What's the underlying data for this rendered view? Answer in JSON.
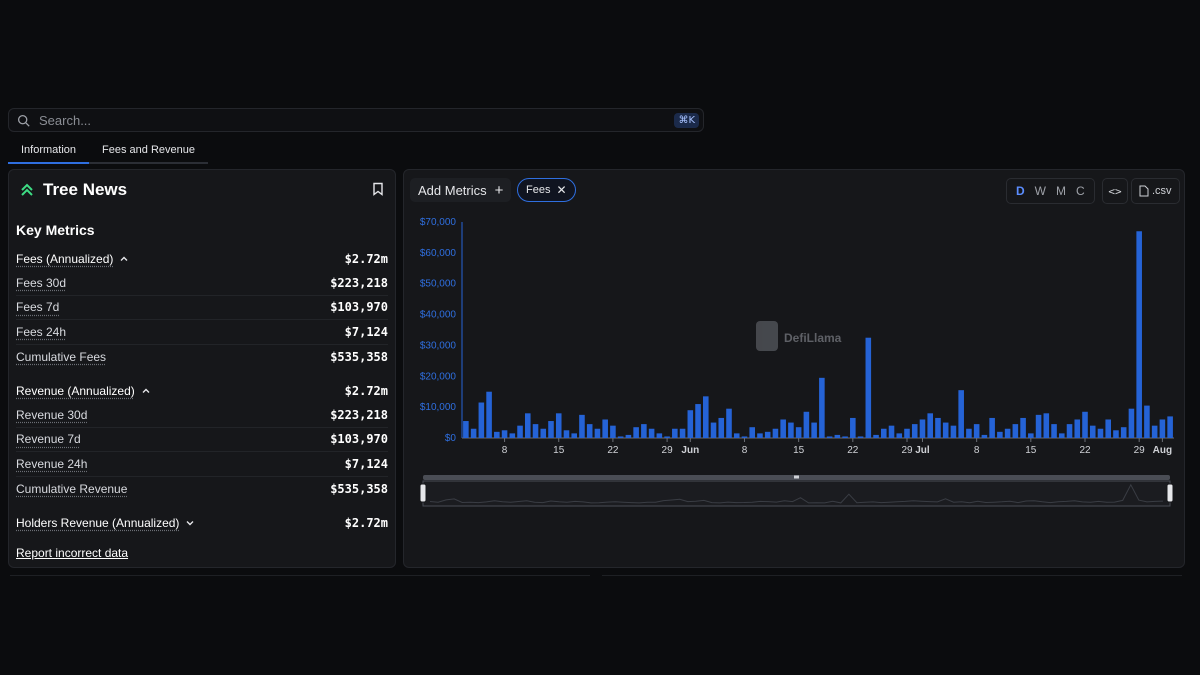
{
  "search": {
    "placeholder": "Search...",
    "shortcut": "⌘K"
  },
  "tabs": [
    {
      "label": "Information"
    },
    {
      "label": "Fees and Revenue"
    }
  ],
  "protocol": {
    "name": "Tree News",
    "logo_icon": "tree-news-logo-icon",
    "bookmark_icon": "bookmark-icon"
  },
  "key_metrics": {
    "title": "Key Metrics",
    "fees": {
      "label": "Fees (Annualized)",
      "value": "$2.72m",
      "rows": [
        {
          "label": "Fees 30d",
          "value": "$223,218"
        },
        {
          "label": "Fees 7d",
          "value": "$103,970"
        },
        {
          "label": "Fees 24h",
          "value": "$7,124"
        },
        {
          "label": "Cumulative Fees",
          "value": "$535,358"
        }
      ]
    },
    "revenue": {
      "label": "Revenue (Annualized)",
      "value": "$2.72m",
      "rows": [
        {
          "label": "Revenue 30d",
          "value": "$223,218"
        },
        {
          "label": "Revenue 7d",
          "value": "$103,970"
        },
        {
          "label": "Revenue 24h",
          "value": "$7,124"
        },
        {
          "label": "Cumulative Revenue",
          "value": "$535,358"
        }
      ]
    },
    "holders": {
      "label": "Holders Revenue (Annualized)",
      "value": "$2.72m"
    }
  },
  "report_link": "Report incorrect data",
  "chart_toolbar": {
    "add_metrics": "Add Metrics",
    "chip_label": "Fees",
    "timeframes": [
      "D",
      "W",
      "M",
      "C"
    ],
    "active_timeframe": "D",
    "embed_label": "<>",
    "csv_label": ".csv"
  },
  "watermark": "DefiLlama",
  "colors": {
    "accent": "#2f6fe0",
    "bar": "#2563d6",
    "background": "#0b0c0e",
    "panel": "#16171a"
  },
  "chart_data": {
    "type": "bar",
    "title": "",
    "xlabel": "",
    "ylabel": "",
    "ylim": [
      0,
      70000
    ],
    "y_ticks": [
      "$0",
      "$10,000",
      "$20,000",
      "$30,000",
      "$40,000",
      "$50,000",
      "$60,000",
      "$70,000"
    ],
    "x_ticks": [
      {
        "label": "8",
        "bold": false,
        "date": "2025-05-08"
      },
      {
        "label": "15",
        "bold": false,
        "date": "2025-05-15"
      },
      {
        "label": "22",
        "bold": false,
        "date": "2025-05-22"
      },
      {
        "label": "29",
        "bold": false,
        "date": "2025-05-29"
      },
      {
        "label": "Jun",
        "bold": true,
        "date": "2025-06-01"
      },
      {
        "label": "8",
        "bold": false,
        "date": "2025-06-08"
      },
      {
        "label": "15",
        "bold": false,
        "date": "2025-06-15"
      },
      {
        "label": "22",
        "bold": false,
        "date": "2025-06-22"
      },
      {
        "label": "29",
        "bold": false,
        "date": "2025-06-29"
      },
      {
        "label": "Jul",
        "bold": true,
        "date": "2025-07-01"
      },
      {
        "label": "8",
        "bold": false,
        "date": "2025-07-08"
      },
      {
        "label": "15",
        "bold": false,
        "date": "2025-07-15"
      },
      {
        "label": "22",
        "bold": false,
        "date": "2025-07-22"
      },
      {
        "label": "29",
        "bold": false,
        "date": "2025-07-29"
      },
      {
        "label": "Aug",
        "bold": true,
        "date": "2025-08-01"
      }
    ],
    "x": [
      "2025-05-03",
      "2025-05-04",
      "2025-05-05",
      "2025-05-06",
      "2025-05-07",
      "2025-05-08",
      "2025-05-09",
      "2025-05-10",
      "2025-05-11",
      "2025-05-12",
      "2025-05-13",
      "2025-05-14",
      "2025-05-15",
      "2025-05-16",
      "2025-05-17",
      "2025-05-18",
      "2025-05-19",
      "2025-05-20",
      "2025-05-21",
      "2025-05-22",
      "2025-05-23",
      "2025-05-24",
      "2025-05-25",
      "2025-05-26",
      "2025-05-27",
      "2025-05-28",
      "2025-05-29",
      "2025-05-30",
      "2025-05-31",
      "2025-06-01",
      "2025-06-02",
      "2025-06-03",
      "2025-06-04",
      "2025-06-05",
      "2025-06-06",
      "2025-06-07",
      "2025-06-08",
      "2025-06-09",
      "2025-06-10",
      "2025-06-11",
      "2025-06-12",
      "2025-06-13",
      "2025-06-14",
      "2025-06-15",
      "2025-06-16",
      "2025-06-17",
      "2025-06-18",
      "2025-06-19",
      "2025-06-20",
      "2025-06-21",
      "2025-06-22",
      "2025-06-23",
      "2025-06-24",
      "2025-06-25",
      "2025-06-26",
      "2025-06-27",
      "2025-06-28",
      "2025-06-29",
      "2025-06-30",
      "2025-07-01",
      "2025-07-02",
      "2025-07-03",
      "2025-07-04",
      "2025-07-05",
      "2025-07-06",
      "2025-07-07",
      "2025-07-08",
      "2025-07-09",
      "2025-07-10",
      "2025-07-11",
      "2025-07-12",
      "2025-07-13",
      "2025-07-14",
      "2025-07-15",
      "2025-07-16",
      "2025-07-17",
      "2025-07-18",
      "2025-07-19",
      "2025-07-20",
      "2025-07-21",
      "2025-07-22",
      "2025-07-23",
      "2025-07-24",
      "2025-07-25",
      "2025-07-26",
      "2025-07-27",
      "2025-07-28",
      "2025-07-29",
      "2025-07-30",
      "2025-07-31",
      "2025-08-01",
      "2025-08-02"
    ],
    "series": [
      {
        "values": [
          5500,
          3000,
          11500,
          15000,
          2000,
          2500,
          1500,
          4000,
          8000,
          4500,
          3000,
          5500,
          8000,
          2500,
          1500,
          7500,
          4500,
          3000,
          6000,
          4000,
          500,
          1000,
          3500,
          4500,
          3000,
          1500,
          500,
          3000,
          3000,
          9000,
          11000,
          13500,
          5000,
          6500,
          9500,
          1500,
          500,
          3500,
          1500,
          2000,
          3000,
          6000,
          5000,
          3500,
          8500,
          5000,
          19500,
          500,
          1000,
          500,
          6500,
          500,
          32500,
          1000,
          3000,
          4000,
          1500,
          3000,
          4500,
          6000,
          8000,
          6500,
          5000,
          4000,
          15500,
          3000,
          4500,
          1000,
          6500,
          2000,
          3000,
          4500,
          6500,
          1500,
          7500,
          8000,
          4500,
          1500,
          4500,
          6000,
          8500,
          4000,
          3000,
          6000,
          2500,
          3500,
          9500,
          67000,
          10500,
          4000,
          6000,
          7000
        ]
      }
    ]
  }
}
